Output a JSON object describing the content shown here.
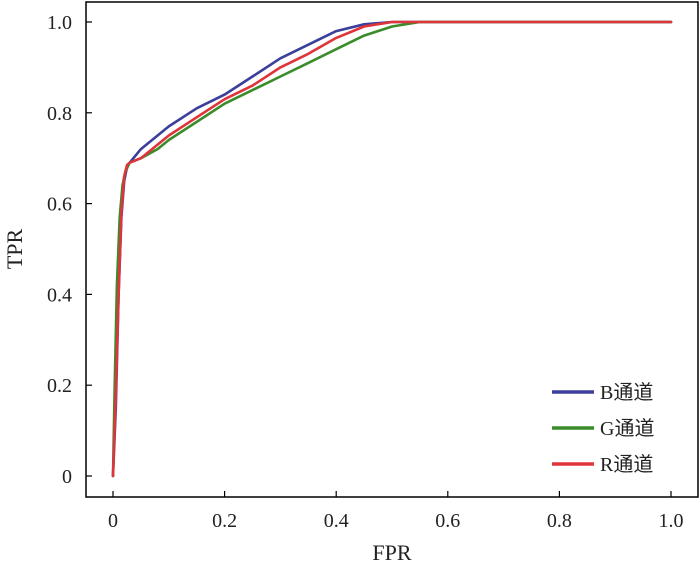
{
  "chart_data": {
    "type": "line",
    "title": "",
    "xlabel": "FPR",
    "ylabel": "TPR",
    "xlim": [
      0,
      1.0
    ],
    "ylim": [
      0,
      1.0
    ],
    "xticks": [
      "0",
      "0.2",
      "0.4",
      "0.6",
      "0.8",
      "1.0"
    ],
    "yticks": [
      "0",
      "0.2",
      "0.4",
      "0.6",
      "0.8",
      "1.0"
    ],
    "grid": false,
    "legend_position": "bottom-right",
    "series": [
      {
        "name": "B通道",
        "color": "#3b3f9a",
        "x": [
          0,
          0.005,
          0.01,
          0.015,
          0.02,
          0.025,
          0.03,
          0.05,
          0.08,
          0.1,
          0.15,
          0.2,
          0.25,
          0.3,
          0.35,
          0.4,
          0.45,
          0.5,
          0.55,
          0.6,
          0.7,
          0.8,
          0.9,
          1.0
        ],
        "y": [
          0,
          0.15,
          0.4,
          0.57,
          0.65,
          0.68,
          0.69,
          0.72,
          0.75,
          0.77,
          0.81,
          0.84,
          0.88,
          0.92,
          0.95,
          0.98,
          0.995,
          1.0,
          1.0,
          1.0,
          1.0,
          1.0,
          1.0,
          1.0
        ]
      },
      {
        "name": "G通道",
        "color": "#3a8c2a",
        "x": [
          0,
          0.003,
          0.007,
          0.012,
          0.017,
          0.022,
          0.03,
          0.05,
          0.08,
          0.1,
          0.15,
          0.2,
          0.25,
          0.3,
          0.35,
          0.4,
          0.45,
          0.5,
          0.55,
          0.6,
          0.7,
          0.8,
          0.9,
          1.0
        ],
        "y": [
          0,
          0.2,
          0.42,
          0.57,
          0.64,
          0.67,
          0.69,
          0.7,
          0.72,
          0.74,
          0.78,
          0.82,
          0.85,
          0.88,
          0.91,
          0.94,
          0.97,
          0.99,
          1.0,
          1.0,
          1.0,
          1.0,
          1.0,
          1.0
        ]
      },
      {
        "name": "R通道",
        "color": "#e0343b",
        "x": [
          0,
          0.005,
          0.01,
          0.015,
          0.02,
          0.025,
          0.03,
          0.05,
          0.08,
          0.1,
          0.15,
          0.2,
          0.25,
          0.3,
          0.35,
          0.4,
          0.45,
          0.5,
          0.55,
          0.6,
          0.7,
          0.8,
          0.9,
          1.0
        ],
        "y": [
          0,
          0.18,
          0.4,
          0.58,
          0.66,
          0.685,
          0.69,
          0.7,
          0.73,
          0.75,
          0.79,
          0.83,
          0.86,
          0.9,
          0.93,
          0.965,
          0.99,
          1.0,
          1.0,
          1.0,
          1.0,
          1.0,
          1.0,
          1.0
        ]
      }
    ]
  }
}
